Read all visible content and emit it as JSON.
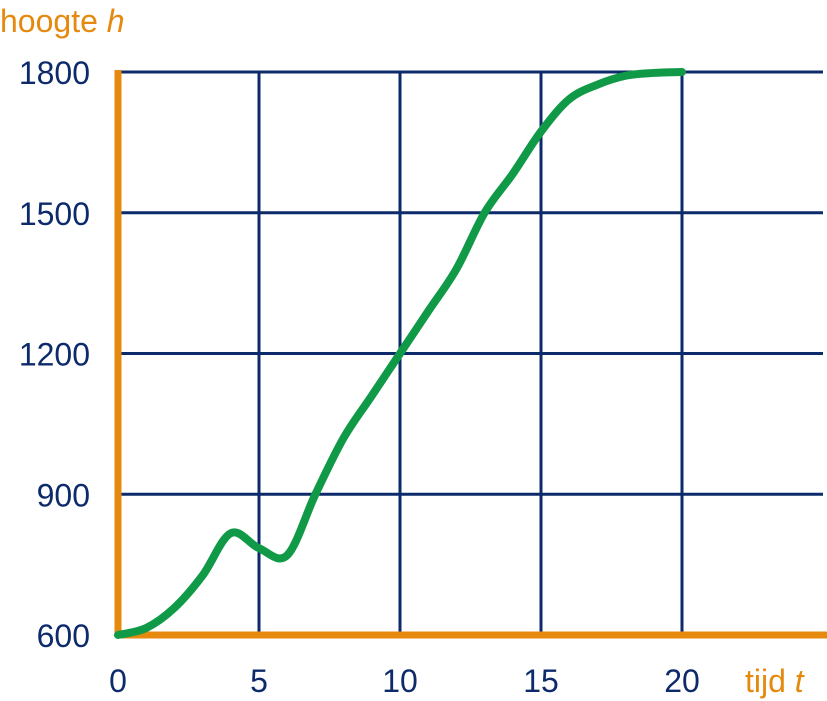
{
  "chart_data": {
    "type": "line",
    "xlabel": "tijd",
    "xlabel_var": "t",
    "ylabel": "hoogte",
    "ylabel_var": "h",
    "xlim": [
      0,
      25
    ],
    "ylim": [
      600,
      1800
    ],
    "x_ticks": [
      0,
      5,
      10,
      15,
      20
    ],
    "y_ticks": [
      600,
      900,
      1200,
      1500,
      1800
    ],
    "grid": true,
    "series": [
      {
        "color": "#109a47",
        "x": [
          0,
          1,
          2,
          3,
          4,
          5,
          6,
          7,
          8,
          9,
          10,
          11,
          12,
          13,
          14,
          15,
          16,
          17,
          18,
          19,
          20
        ],
        "values": [
          600,
          615,
          658,
          727,
          817,
          785,
          770,
          900,
          1020,
          1110,
          1200,
          1290,
          1380,
          1500,
          1583,
          1673,
          1742,
          1773,
          1792,
          1798,
          1800
        ]
      }
    ],
    "colors": {
      "grid": "#0d2a6b",
      "axis": "#e58a0f",
      "curve": "#109a47",
      "tick_text": "#0d2a6b",
      "axis_label": "#e58a0f"
    }
  }
}
